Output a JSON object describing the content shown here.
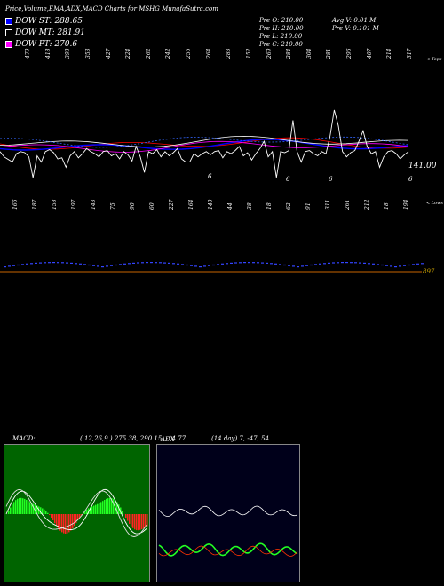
{
  "header": {
    "title": "Price,Volume,EMA,ADX,MACD Charts for MSHG MunafaSutra.com"
  },
  "legend": [
    {
      "label": "DOW ST: 288.65",
      "color": "#0000ff"
    },
    {
      "label": "DOW MT: 281.91",
      "color": "#000000"
    },
    {
      "label": "DOW PT: 270.6",
      "color": "#ff00ff"
    }
  ],
  "stats": {
    "prev_open": "Pre   O: 210.00",
    "prev_high": "Pre   H: 210.00",
    "prev_low": "Pre   L: 210.00",
    "prev_close": "Pre   C: 210.00",
    "avg_volume": "Avg V: 0.01 M",
    "prev_volume": "Pre   V: 0.101 M"
  },
  "price_labels": {
    "top_tag": "< Tops",
    "low_tag": "< Lows",
    "current_price": "141.00",
    "volume_value": "897",
    "markers": [
      "6",
      "6",
      "6",
      "6"
    ],
    "tops": [
      "479",
      "418",
      "398",
      "353",
      "427",
      "224",
      "262",
      "242",
      "256",
      "264",
      "283",
      "152",
      "269",
      "284",
      "304",
      "281",
      "296",
      "407",
      "214",
      "317"
    ],
    "lows": [
      "166",
      "187",
      "158",
      "197",
      "143",
      "75",
      "90",
      "60",
      "227",
      "164",
      "140",
      "44",
      "38",
      "18",
      "62",
      "91",
      "311",
      "261",
      "212",
      "18",
      "194"
    ]
  },
  "macd": {
    "label": "MACD:",
    "values": "( 12,26,9 ) 275.38, 290.15, -14.77",
    "background": "#006400"
  },
  "adx": {
    "label": "ADX",
    "values": "(14 day) 7, -47, 54",
    "background": "#00001a"
  },
  "chart_data": {
    "type": "line",
    "title": "Price,Volume,EMA,ADX,MACD Charts for MSHG",
    "series": [
      {
        "name": "DOW ST",
        "value": 288.65,
        "color": "#0000ff"
      },
      {
        "name": "DOW MT",
        "value": 281.91,
        "color": "#000000"
      },
      {
        "name": "DOW PT",
        "value": 270.6,
        "color": "#ff00ff"
      }
    ],
    "price_series": [
      300,
      290,
      285,
      280,
      296,
      300,
      298,
      290,
      250,
      292,
      280,
      300,
      304,
      298,
      286,
      288,
      270,
      292,
      300,
      288,
      296,
      306,
      300,
      296,
      290,
      300,
      302,
      292,
      296,
      286,
      300,
      294,
      282,
      310,
      290,
      260,
      300,
      296,
      304,
      290,
      300,
      292,
      298,
      306,
      286,
      280,
      280,
      296,
      290,
      296,
      300,
      294,
      300,
      302,
      288,
      300,
      296,
      302,
      310,
      292,
      298,
      284,
      296,
      306,
      320,
      290,
      300,
      250,
      300,
      298,
      302,
      360,
      300,
      280,
      300,
      302,
      296,
      292,
      300,
      296,
      330,
      380,
      350,
      300,
      290,
      298,
      302,
      320,
      340,
      310,
      296,
      300,
      270,
      290,
      300,
      302,
      296,
      286,
      294,
      300
    ],
    "tops": [
      479,
      418,
      398,
      353,
      427,
      224,
      262,
      242,
      256,
      264,
      283,
      152,
      269,
      284,
      304,
      281,
      296,
      407,
      214,
      317
    ],
    "lows": [
      166,
      187,
      158,
      197,
      143,
      75,
      90,
      60,
      227,
      164,
      140,
      44,
      38,
      18,
      62,
      91,
      311,
      261,
      212,
      18,
      194
    ],
    "macd": {
      "fast": 12,
      "slow": 26,
      "signal": 9,
      "macd": 275.38,
      "signal_value": 290.15,
      "histogram": -14.77
    },
    "adx": {
      "period": 14,
      "adx": 7,
      "minus": -47,
      "plus": 54
    }
  }
}
